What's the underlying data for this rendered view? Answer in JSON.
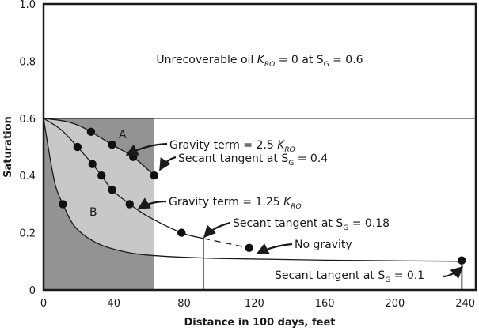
{
  "chart_data": {
    "type": "line",
    "xlabel": "Distance in 100 days, feet",
    "ylabel": "Saturation",
    "xlim": [
      0,
      246
    ],
    "ylim": [
      0,
      1.0
    ],
    "xticks": [
      "0",
      "40",
      "80",
      "120",
      "160",
      "200",
      "240"
    ],
    "xtick_values": [
      0,
      40,
      80,
      120,
      160,
      200,
      240
    ],
    "yticks": [
      "0",
      "0.2",
      "0.4",
      "0.6",
      "0.8",
      "1.0"
    ],
    "ytick_values": [
      0,
      0.2,
      0.4,
      0.6,
      0.8,
      1.0
    ],
    "grid": false,
    "colors": {
      "dark_region": "#939393",
      "light_region": "#c8c8c8",
      "line": "#1a1a1a"
    },
    "shaded_region_x": [
      0,
      63
    ],
    "series": [
      {
        "key": "gravity_2_5",
        "points": [
          [
            0,
            0.6
          ],
          [
            12,
            0.59
          ],
          [
            20,
            0.575
          ],
          [
            27,
            0.553
          ],
          [
            39,
            0.508
          ],
          [
            51,
            0.465
          ],
          [
            63,
            0.4
          ]
        ],
        "markers": [
          [
            27,
            0.553
          ],
          [
            39,
            0.508
          ],
          [
            51,
            0.465
          ],
          [
            63,
            0.4
          ]
        ]
      },
      {
        "key": "gravity_1_25",
        "points": [
          [
            0,
            0.6
          ],
          [
            10,
            0.56
          ],
          [
            19.3,
            0.5
          ],
          [
            27.8,
            0.44
          ],
          [
            33,
            0.4
          ],
          [
            39,
            0.35
          ],
          [
            49,
            0.3
          ],
          [
            60,
            0.255
          ],
          [
            78.5,
            0.2
          ],
          [
            91,
            0.18
          ]
        ],
        "dashed": [
          [
            91,
            0.18
          ],
          [
            117,
            0.147
          ]
        ],
        "markers": [
          [
            19.3,
            0.5
          ],
          [
            27.8,
            0.44
          ],
          [
            33,
            0.4
          ],
          [
            39,
            0.35
          ],
          [
            49,
            0.3
          ],
          [
            78.5,
            0.2
          ],
          [
            117,
            0.147
          ]
        ]
      },
      {
        "key": "no_gravity",
        "points": [
          [
            0,
            0.6
          ],
          [
            4,
            0.45
          ],
          [
            7,
            0.36
          ],
          [
            11,
            0.3
          ],
          [
            18,
            0.22
          ],
          [
            30,
            0.165
          ],
          [
            45,
            0.135
          ],
          [
            63,
            0.12
          ],
          [
            100,
            0.11
          ],
          [
            160,
            0.104
          ],
          [
            238,
            0.1
          ]
        ],
        "markers": [
          [
            11,
            0.3
          ],
          [
            238,
            0.103
          ]
        ]
      }
    ],
    "horizontal_line_y": 0.6,
    "vertical_lines": [
      {
        "x": 91,
        "y": 0.18,
        "color": "#1a1a1a"
      },
      {
        "x": 238,
        "y": 0.1,
        "color": "#888888"
      }
    ],
    "annotations": {
      "unrecoverable": {
        "pre": "Unrecoverable oil ",
        "k": "K",
        "k_sub": "RO",
        "mid": " = 0 at ",
        "s": "S",
        "s_sub": "G",
        "post": " = 0.6"
      },
      "region_a": "A",
      "region_b": "B",
      "gravity_2_5": {
        "pre": "Gravity term = 2.5 ",
        "k": "K",
        "k_sub": "RO"
      },
      "secant_0_4": {
        "pre": "Secant tangent at ",
        "s": "S",
        "s_sub": "G",
        "post": " = 0.4"
      },
      "gravity_1_25": {
        "pre": "Gravity term = 1.25 ",
        "k": "K",
        "k_sub": "RO"
      },
      "secant_0_18": {
        "pre": "Secant tangent at ",
        "s": "S",
        "s_sub": "G",
        "post": " = 0.18"
      },
      "no_gravity": "No gravity",
      "secant_0_1": {
        "pre": "Secant tangent at ",
        "s": "S",
        "s_sub": "G",
        "post": " = 0.1"
      }
    }
  }
}
